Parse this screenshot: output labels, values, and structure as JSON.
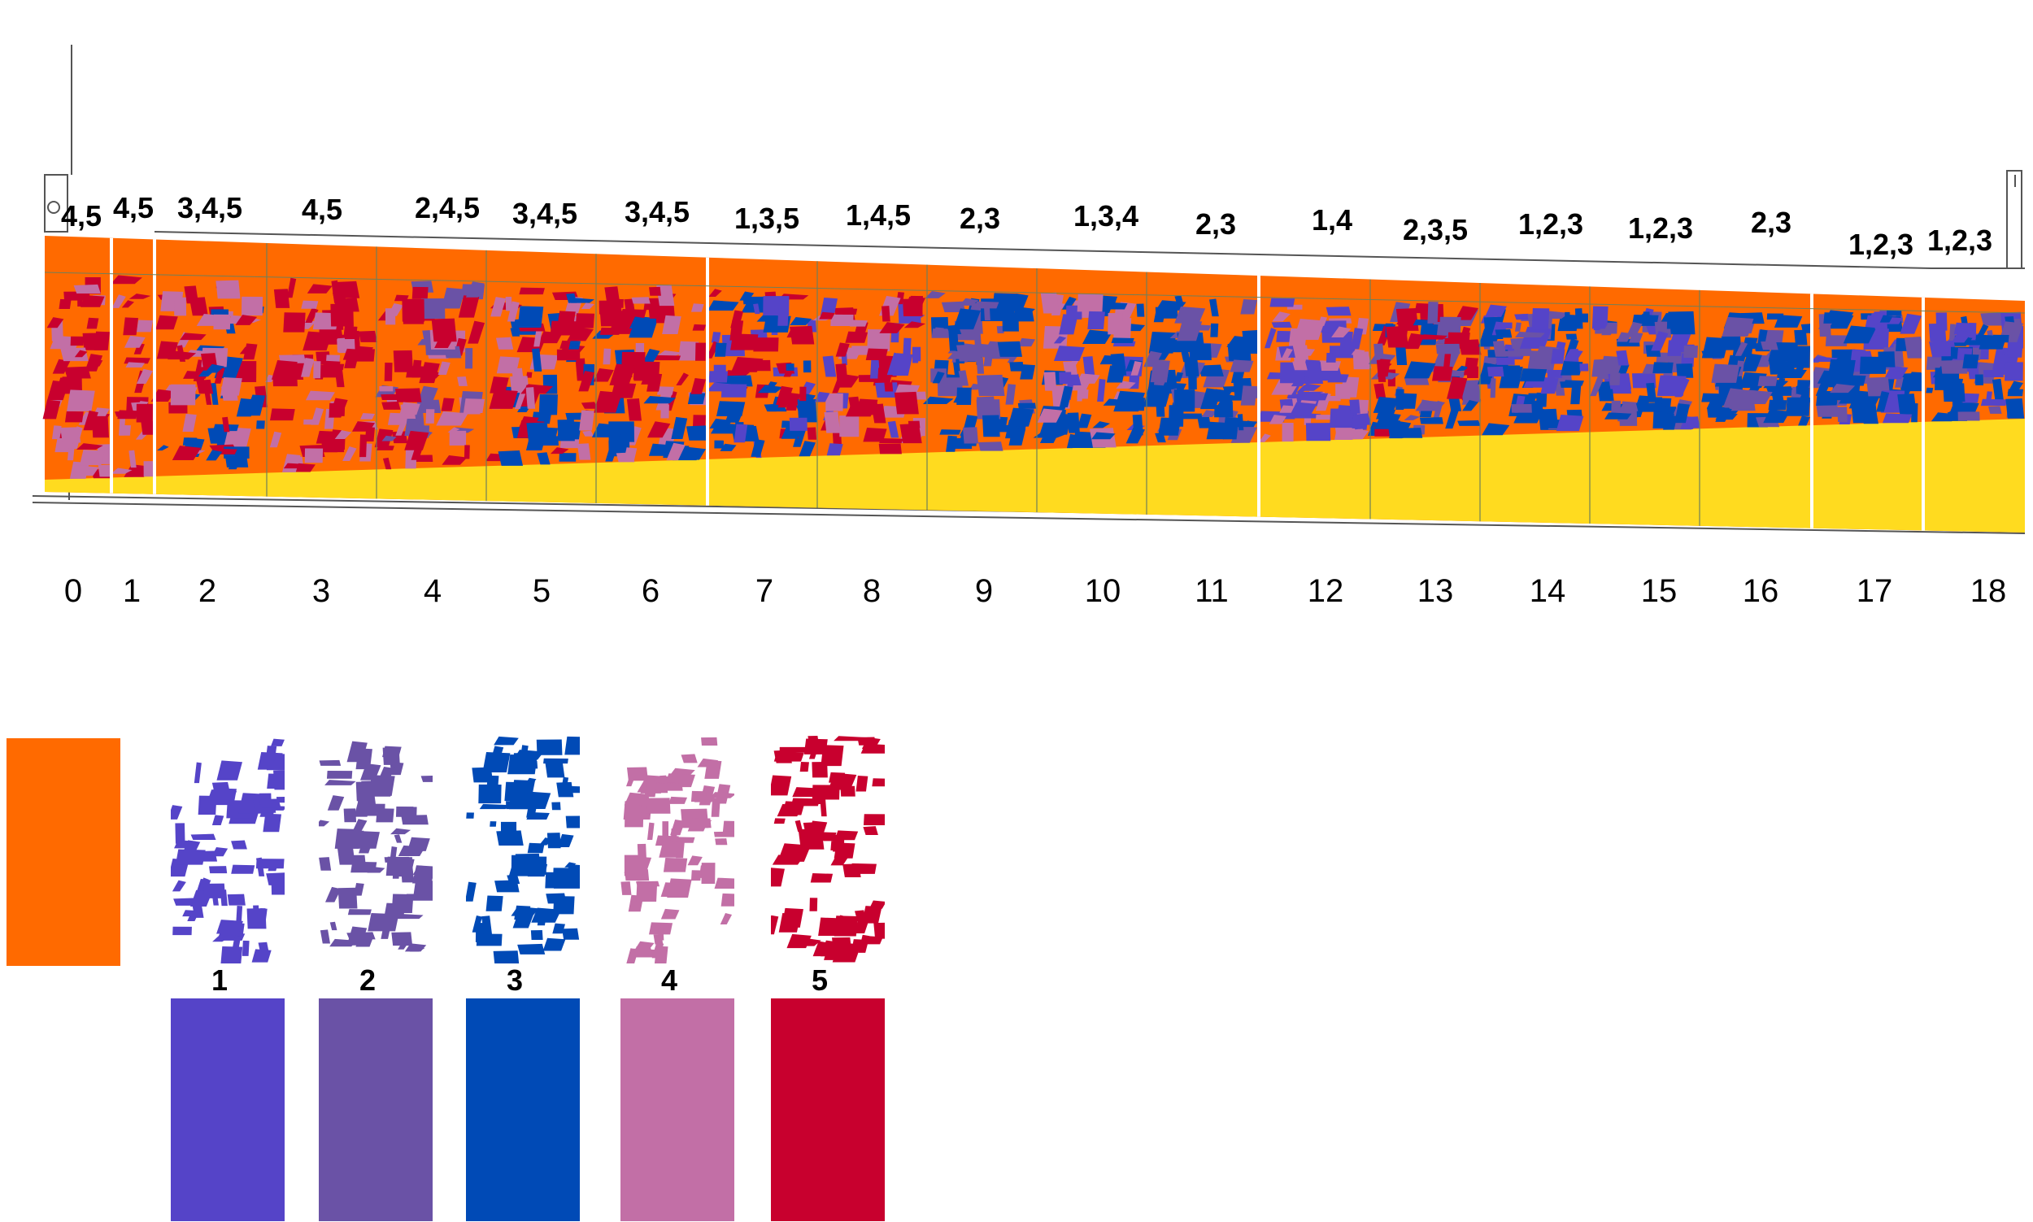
{
  "colors": {
    "base": "#FF6A00",
    "sand": "#FFDB1F",
    "layer1": "#5544C8",
    "layer2": "#6A52A6",
    "layer3": "#004AB6",
    "layer4": "#C26FA6",
    "layer5": "#C8002E"
  },
  "panels": [
    {
      "number": "0",
      "layers": "4,5"
    },
    {
      "number": "1",
      "layers": "4,5"
    },
    {
      "number": "2",
      "layers": "3,4,5"
    },
    {
      "number": "3",
      "layers": "4,5"
    },
    {
      "number": "4",
      "layers": "2,4,5"
    },
    {
      "number": "5",
      "layers": "3,4,5"
    },
    {
      "number": "6",
      "layers": "3,4,5"
    },
    {
      "number": "7",
      "layers": "1,3,5"
    },
    {
      "number": "8",
      "layers": "1,4,5"
    },
    {
      "number": "9",
      "layers": "2,3"
    },
    {
      "number": "10",
      "layers": "1,3,4"
    },
    {
      "number": "11",
      "layers": "2,3"
    },
    {
      "number": "12",
      "layers": "1,4"
    },
    {
      "number": "13",
      "layers": "2,3,5"
    },
    {
      "number": "14",
      "layers": "1,2,3"
    },
    {
      "number": "15",
      "layers": "1,2,3"
    },
    {
      "number": "16",
      "layers": "2,3"
    },
    {
      "number": "17",
      "layers": "1,2,3"
    },
    {
      "number": "18",
      "layers": "1,2,3"
    }
  ],
  "legend": [
    {
      "number": "1",
      "color": "#5544C8"
    },
    {
      "number": "2",
      "color": "#6A52A6"
    },
    {
      "number": "3",
      "color": "#004AB6"
    },
    {
      "number": "4",
      "color": "#C26FA6"
    },
    {
      "number": "5",
      "color": "#C8002E"
    }
  ]
}
